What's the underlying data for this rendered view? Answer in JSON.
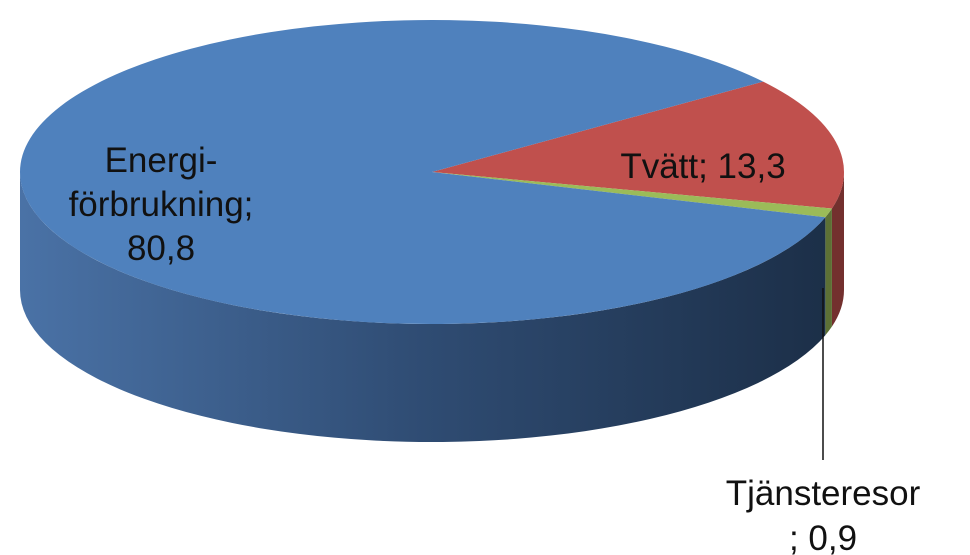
{
  "chart_data": {
    "type": "pie",
    "style": "3d",
    "start_slice": "Tvätt",
    "direction": "clockwise",
    "slices": [
      {
        "name": "Tvätt",
        "value": 13.3,
        "color": "#c0504d",
        "label_lines": [
          "Tvätt; 13,3"
        ]
      },
      {
        "name": "Tjänsteresor",
        "value": 0.9,
        "color": "#9bbb59",
        "label_lines": [
          "Tjänsteresor",
          "; 0,9"
        ]
      },
      {
        "name": "Energiförbrukning",
        "value": 80.8,
        "color": "#4f81bd",
        "label_lines": [
          "Energi-",
          "förbrukning;",
          "80,8"
        ]
      }
    ],
    "legend": "none"
  }
}
